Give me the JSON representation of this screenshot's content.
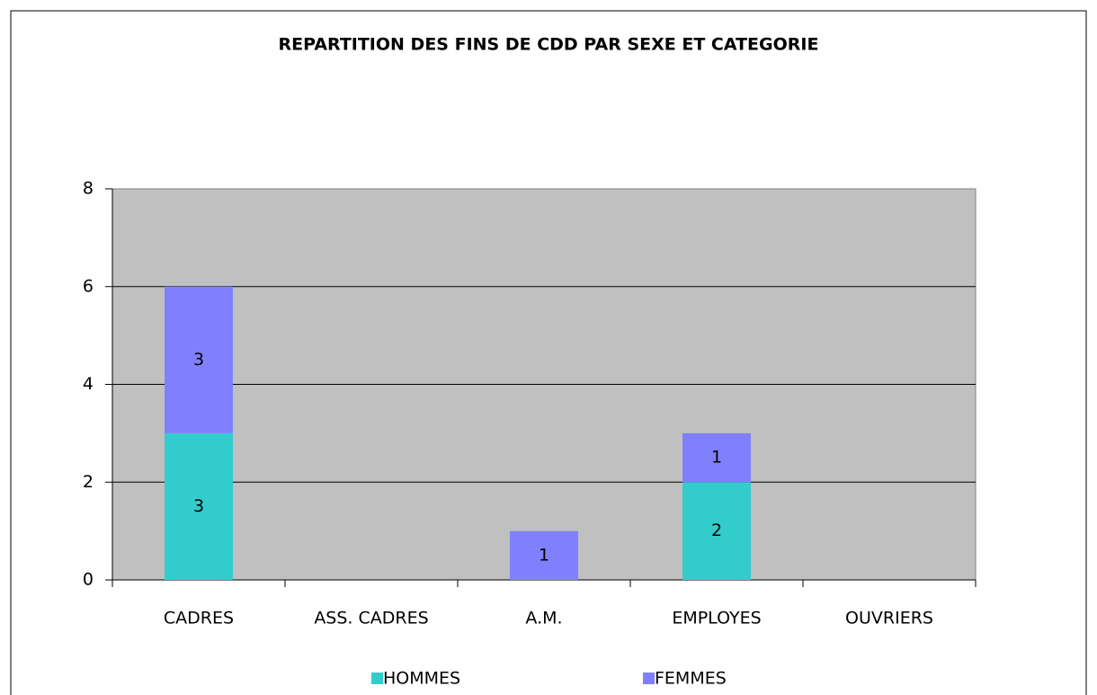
{
  "chart_data": {
    "type": "stacked_bar",
    "title": "REPARTITION DES FINS DE CDD PAR SEXE ET CATEGORIE",
    "categories": [
      "CADRES",
      "ASS. CADRES",
      "A.M.",
      "EMPLOYES",
      "OUVRIERS"
    ],
    "series": [
      {
        "name": "HOMMES",
        "color": "#33cccc",
        "values": [
          3,
          0,
          0,
          2,
          0
        ]
      },
      {
        "name": "FEMMES",
        "color": "#8080ff",
        "values": [
          3,
          0,
          1,
          1,
          0
        ]
      }
    ],
    "ylim": [
      0,
      8
    ],
    "yticks": [
      0,
      2,
      4,
      6,
      8
    ],
    "grid": true,
    "legend": "bottom",
    "plot_background": "#c0c0c0"
  }
}
